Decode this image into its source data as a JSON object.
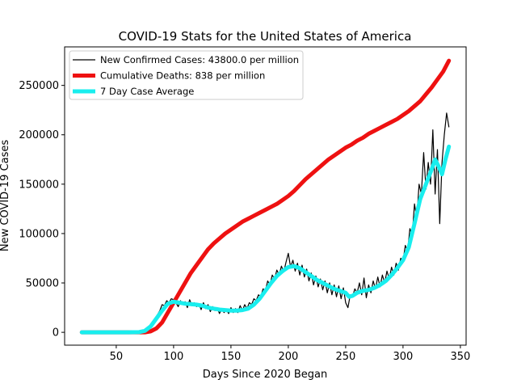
{
  "chart_data": {
    "type": "line",
    "title": "COVID-19 Stats for the United States of America",
    "xlabel": "Days Since 2020 Began",
    "ylabel": "New COVID-19 Cases",
    "xlim": [
      5,
      355
    ],
    "ylim": [
      -13000,
      289000
    ],
    "xticks": [
      50,
      100,
      150,
      200,
      250,
      300,
      350
    ],
    "yticks": [
      0,
      50000,
      100000,
      150000,
      200000,
      250000
    ],
    "grid": false,
    "legend_position": "top-left",
    "series": [
      {
        "name": "New Confirmed Cases: 43800.0 per million",
        "color": "#000000",
        "style": "thin",
        "points": [
          [
            20,
            0
          ],
          [
            40,
            0
          ],
          [
            60,
            0
          ],
          [
            70,
            500
          ],
          [
            74,
            2000
          ],
          [
            78,
            5000
          ],
          [
            82,
            10000
          ],
          [
            85,
            16000
          ],
          [
            88,
            22000
          ],
          [
            90,
            28000
          ],
          [
            92,
            27000
          ],
          [
            94,
            32000
          ],
          [
            96,
            30000
          ],
          [
            98,
            34000
          ],
          [
            100,
            33000
          ],
          [
            102,
            30000
          ],
          [
            104,
            26000
          ],
          [
            106,
            32000
          ],
          [
            108,
            28000
          ],
          [
            110,
            31000
          ],
          [
            112,
            25000
          ],
          [
            114,
            33000
          ],
          [
            116,
            27000
          ],
          [
            118,
            30000
          ],
          [
            120,
            26000
          ],
          [
            122,
            29000
          ],
          [
            124,
            23000
          ],
          [
            126,
            30000
          ],
          [
            128,
            24000
          ],
          [
            130,
            28000
          ],
          [
            132,
            21000
          ],
          [
            134,
            26000
          ],
          [
            136,
            22000
          ],
          [
            138,
            25000
          ],
          [
            140,
            19000
          ],
          [
            142,
            24000
          ],
          [
            144,
            20000
          ],
          [
            146,
            23000
          ],
          [
            148,
            19000
          ],
          [
            150,
            25000
          ],
          [
            152,
            20000
          ],
          [
            154,
            24000
          ],
          [
            156,
            20000
          ],
          [
            158,
            27000
          ],
          [
            160,
            22000
          ],
          [
            162,
            28000
          ],
          [
            164,
            24000
          ],
          [
            166,
            30000
          ],
          [
            168,
            28000
          ],
          [
            170,
            34000
          ],
          [
            172,
            32000
          ],
          [
            174,
            38000
          ],
          [
            176,
            36000
          ],
          [
            178,
            44000
          ],
          [
            180,
            42000
          ],
          [
            182,
            52000
          ],
          [
            184,
            48000
          ],
          [
            186,
            58000
          ],
          [
            188,
            54000
          ],
          [
            190,
            63000
          ],
          [
            192,
            58000
          ],
          [
            194,
            67000
          ],
          [
            196,
            61000
          ],
          [
            198,
            71000
          ],
          [
            200,
            80000
          ],
          [
            202,
            66000
          ],
          [
            204,
            73000
          ],
          [
            206,
            62000
          ],
          [
            208,
            70000
          ],
          [
            210,
            58000
          ],
          [
            212,
            68000
          ],
          [
            214,
            56000
          ],
          [
            216,
            64000
          ],
          [
            218,
            52000
          ],
          [
            220,
            60000
          ],
          [
            222,
            48000
          ],
          [
            224,
            57000
          ],
          [
            226,
            46000
          ],
          [
            228,
            54000
          ],
          [
            230,
            43000
          ],
          [
            232,
            52000
          ],
          [
            234,
            40000
          ],
          [
            236,
            50000
          ],
          [
            238,
            38000
          ],
          [
            240,
            48000
          ],
          [
            242,
            36000
          ],
          [
            244,
            47000
          ],
          [
            246,
            34000
          ],
          [
            248,
            45000
          ],
          [
            250,
            30000
          ],
          [
            252,
            25000
          ],
          [
            254,
            38000
          ],
          [
            256,
            36000
          ],
          [
            258,
            44000
          ],
          [
            260,
            40000
          ],
          [
            262,
            50000
          ],
          [
            264,
            38000
          ],
          [
            266,
            55000
          ],
          [
            268,
            35000
          ],
          [
            270,
            48000
          ],
          [
            272,
            40000
          ],
          [
            274,
            52000
          ],
          [
            276,
            44000
          ],
          [
            278,
            56000
          ],
          [
            280,
            46000
          ],
          [
            282,
            58000
          ],
          [
            284,
            50000
          ],
          [
            286,
            62000
          ],
          [
            288,
            54000
          ],
          [
            290,
            66000
          ],
          [
            292,
            58000
          ],
          [
            294,
            70000
          ],
          [
            296,
            63000
          ],
          [
            298,
            75000
          ],
          [
            300,
            72000
          ],
          [
            302,
            88000
          ],
          [
            304,
            82000
          ],
          [
            306,
            105000
          ],
          [
            308,
            98000
          ],
          [
            310,
            130000
          ],
          [
            312,
            115000
          ],
          [
            314,
            150000
          ],
          [
            316,
            140000
          ],
          [
            318,
            182000
          ],
          [
            320,
            145000
          ],
          [
            322,
            172000
          ],
          [
            324,
            150000
          ],
          [
            326,
            205000
          ],
          [
            328,
            140000
          ],
          [
            330,
            185000
          ],
          [
            332,
            110000
          ],
          [
            334,
            172000
          ],
          [
            336,
            200000
          ],
          [
            338,
            222000
          ],
          [
            340,
            208000
          ]
        ]
      },
      {
        "name": "Cumulative Deaths: 838 per million",
        "color": "#ee1111",
        "style": "thick",
        "points": [
          [
            20,
            0
          ],
          [
            60,
            0
          ],
          [
            75,
            0
          ],
          [
            80,
            1000
          ],
          [
            85,
            4000
          ],
          [
            90,
            10000
          ],
          [
            95,
            20000
          ],
          [
            100,
            30000
          ],
          [
            105,
            40000
          ],
          [
            110,
            50000
          ],
          [
            115,
            60000
          ],
          [
            120,
            68000
          ],
          [
            125,
            76000
          ],
          [
            130,
            84000
          ],
          [
            135,
            90000
          ],
          [
            140,
            95000
          ],
          [
            145,
            100000
          ],
          [
            150,
            104000
          ],
          [
            155,
            108000
          ],
          [
            160,
            112000
          ],
          [
            165,
            115000
          ],
          [
            170,
            118000
          ],
          [
            175,
            121000
          ],
          [
            180,
            124000
          ],
          [
            185,
            127000
          ],
          [
            190,
            130000
          ],
          [
            195,
            134000
          ],
          [
            200,
            138000
          ],
          [
            205,
            143000
          ],
          [
            210,
            149000
          ],
          [
            215,
            155000
          ],
          [
            220,
            160000
          ],
          [
            225,
            165000
          ],
          [
            230,
            170000
          ],
          [
            235,
            175000
          ],
          [
            240,
            179000
          ],
          [
            245,
            183000
          ],
          [
            250,
            187000
          ],
          [
            255,
            190000
          ],
          [
            260,
            194000
          ],
          [
            265,
            197000
          ],
          [
            270,
            201000
          ],
          [
            275,
            204000
          ],
          [
            280,
            207000
          ],
          [
            285,
            210000
          ],
          [
            290,
            213000
          ],
          [
            295,
            216000
          ],
          [
            300,
            220000
          ],
          [
            305,
            224000
          ],
          [
            310,
            229000
          ],
          [
            315,
            234000
          ],
          [
            320,
            241000
          ],
          [
            325,
            248000
          ],
          [
            330,
            256000
          ],
          [
            335,
            264000
          ],
          [
            340,
            275000
          ]
        ]
      },
      {
        "name": "7 Day Case Average",
        "color": "#19eeee",
        "style": "thick",
        "points": [
          [
            20,
            0
          ],
          [
            40,
            0
          ],
          [
            60,
            0
          ],
          [
            70,
            200
          ],
          [
            75,
            1500
          ],
          [
            80,
            6000
          ],
          [
            85,
            14000
          ],
          [
            90,
            22000
          ],
          [
            95,
            29000
          ],
          [
            100,
            31000
          ],
          [
            105,
            30000
          ],
          [
            110,
            29000
          ],
          [
            115,
            28500
          ],
          [
            120,
            28000
          ],
          [
            125,
            27000
          ],
          [
            130,
            25000
          ],
          [
            135,
            24000
          ],
          [
            140,
            23000
          ],
          [
            145,
            22500
          ],
          [
            150,
            22000
          ],
          [
            155,
            22000
          ],
          [
            160,
            22500
          ],
          [
            165,
            24000
          ],
          [
            170,
            28000
          ],
          [
            175,
            34000
          ],
          [
            180,
            42000
          ],
          [
            185,
            50000
          ],
          [
            190,
            57000
          ],
          [
            195,
            62000
          ],
          [
            200,
            66000
          ],
          [
            205,
            67000
          ],
          [
            210,
            65000
          ],
          [
            215,
            61000
          ],
          [
            220,
            57000
          ],
          [
            225,
            53000
          ],
          [
            230,
            50000
          ],
          [
            235,
            47000
          ],
          [
            240,
            44000
          ],
          [
            245,
            42000
          ],
          [
            250,
            40000
          ],
          [
            253,
            36000
          ],
          [
            256,
            37000
          ],
          [
            260,
            40000
          ],
          [
            265,
            42000
          ],
          [
            270,
            43000
          ],
          [
            275,
            45000
          ],
          [
            280,
            48000
          ],
          [
            285,
            52000
          ],
          [
            290,
            58000
          ],
          [
            295,
            65000
          ],
          [
            300,
            73000
          ],
          [
            305,
            86000
          ],
          [
            310,
            110000
          ],
          [
            315,
            135000
          ],
          [
            320,
            150000
          ],
          [
            325,
            165000
          ],
          [
            328,
            175000
          ],
          [
            331,
            168000
          ],
          [
            334,
            160000
          ],
          [
            337,
            175000
          ],
          [
            340,
            188000
          ]
        ]
      }
    ]
  }
}
